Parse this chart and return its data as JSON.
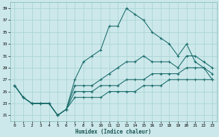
{
  "xlabel": "Humidex (Indice chaleur)",
  "xlim": [
    -0.5,
    23.5
  ],
  "ylim": [
    20,
    40
  ],
  "yticks": [
    21,
    23,
    25,
    27,
    29,
    31,
    33,
    35,
    37,
    39
  ],
  "xticks": [
    0,
    1,
    2,
    3,
    4,
    5,
    6,
    7,
    8,
    9,
    10,
    11,
    12,
    13,
    14,
    15,
    16,
    17,
    18,
    19,
    20,
    21,
    22,
    23
  ],
  "bg_color": "#cce8ea",
  "line_color": "#1a6b6b",
  "grid_color": "#aad4d6",
  "curves": [
    {
      "x": [
        0,
        1,
        2,
        3,
        4,
        5,
        6,
        7,
        8,
        9,
        10,
        11,
        12,
        13,
        14,
        15,
        16,
        17,
        18,
        19,
        20,
        21,
        22,
        23
      ],
      "y": [
        26,
        24,
        23,
        23,
        23,
        21,
        22,
        27,
        30,
        31,
        32,
        36,
        36,
        39,
        38,
        37,
        35,
        34,
        33,
        31,
        33,
        30,
        29,
        27
      ]
    },
    {
      "x": [
        0,
        1,
        2,
        3,
        4,
        5,
        6,
        7,
        8,
        9,
        10,
        11,
        12,
        13,
        14,
        15,
        16,
        17,
        18,
        19,
        20,
        21,
        22,
        23
      ],
      "y": [
        26,
        24,
        23,
        23,
        23,
        21,
        22,
        26,
        26,
        26,
        27,
        28,
        29,
        30,
        30,
        31,
        30,
        30,
        30,
        29,
        31,
        31,
        30,
        29
      ]
    },
    {
      "x": [
        0,
        1,
        2,
        3,
        4,
        5,
        6,
        7,
        8,
        9,
        10,
        11,
        12,
        13,
        14,
        15,
        16,
        17,
        18,
        19,
        20,
        21,
        22,
        23
      ],
      "y": [
        26,
        24,
        23,
        23,
        23,
        21,
        22,
        25,
        25,
        25,
        26,
        26,
        26,
        27,
        27,
        27,
        28,
        28,
        28,
        28,
        29,
        29,
        29,
        28
      ]
    },
    {
      "x": [
        0,
        1,
        2,
        3,
        4,
        5,
        6,
        7,
        8,
        9,
        10,
        11,
        12,
        13,
        14,
        15,
        16,
        17,
        18,
        19,
        20,
        21,
        22,
        23
      ],
      "y": [
        26,
        24,
        23,
        23,
        23,
        21,
        22,
        24,
        24,
        24,
        24,
        25,
        25,
        25,
        25,
        26,
        26,
        26,
        27,
        27,
        27,
        27,
        27,
        27
      ]
    }
  ]
}
